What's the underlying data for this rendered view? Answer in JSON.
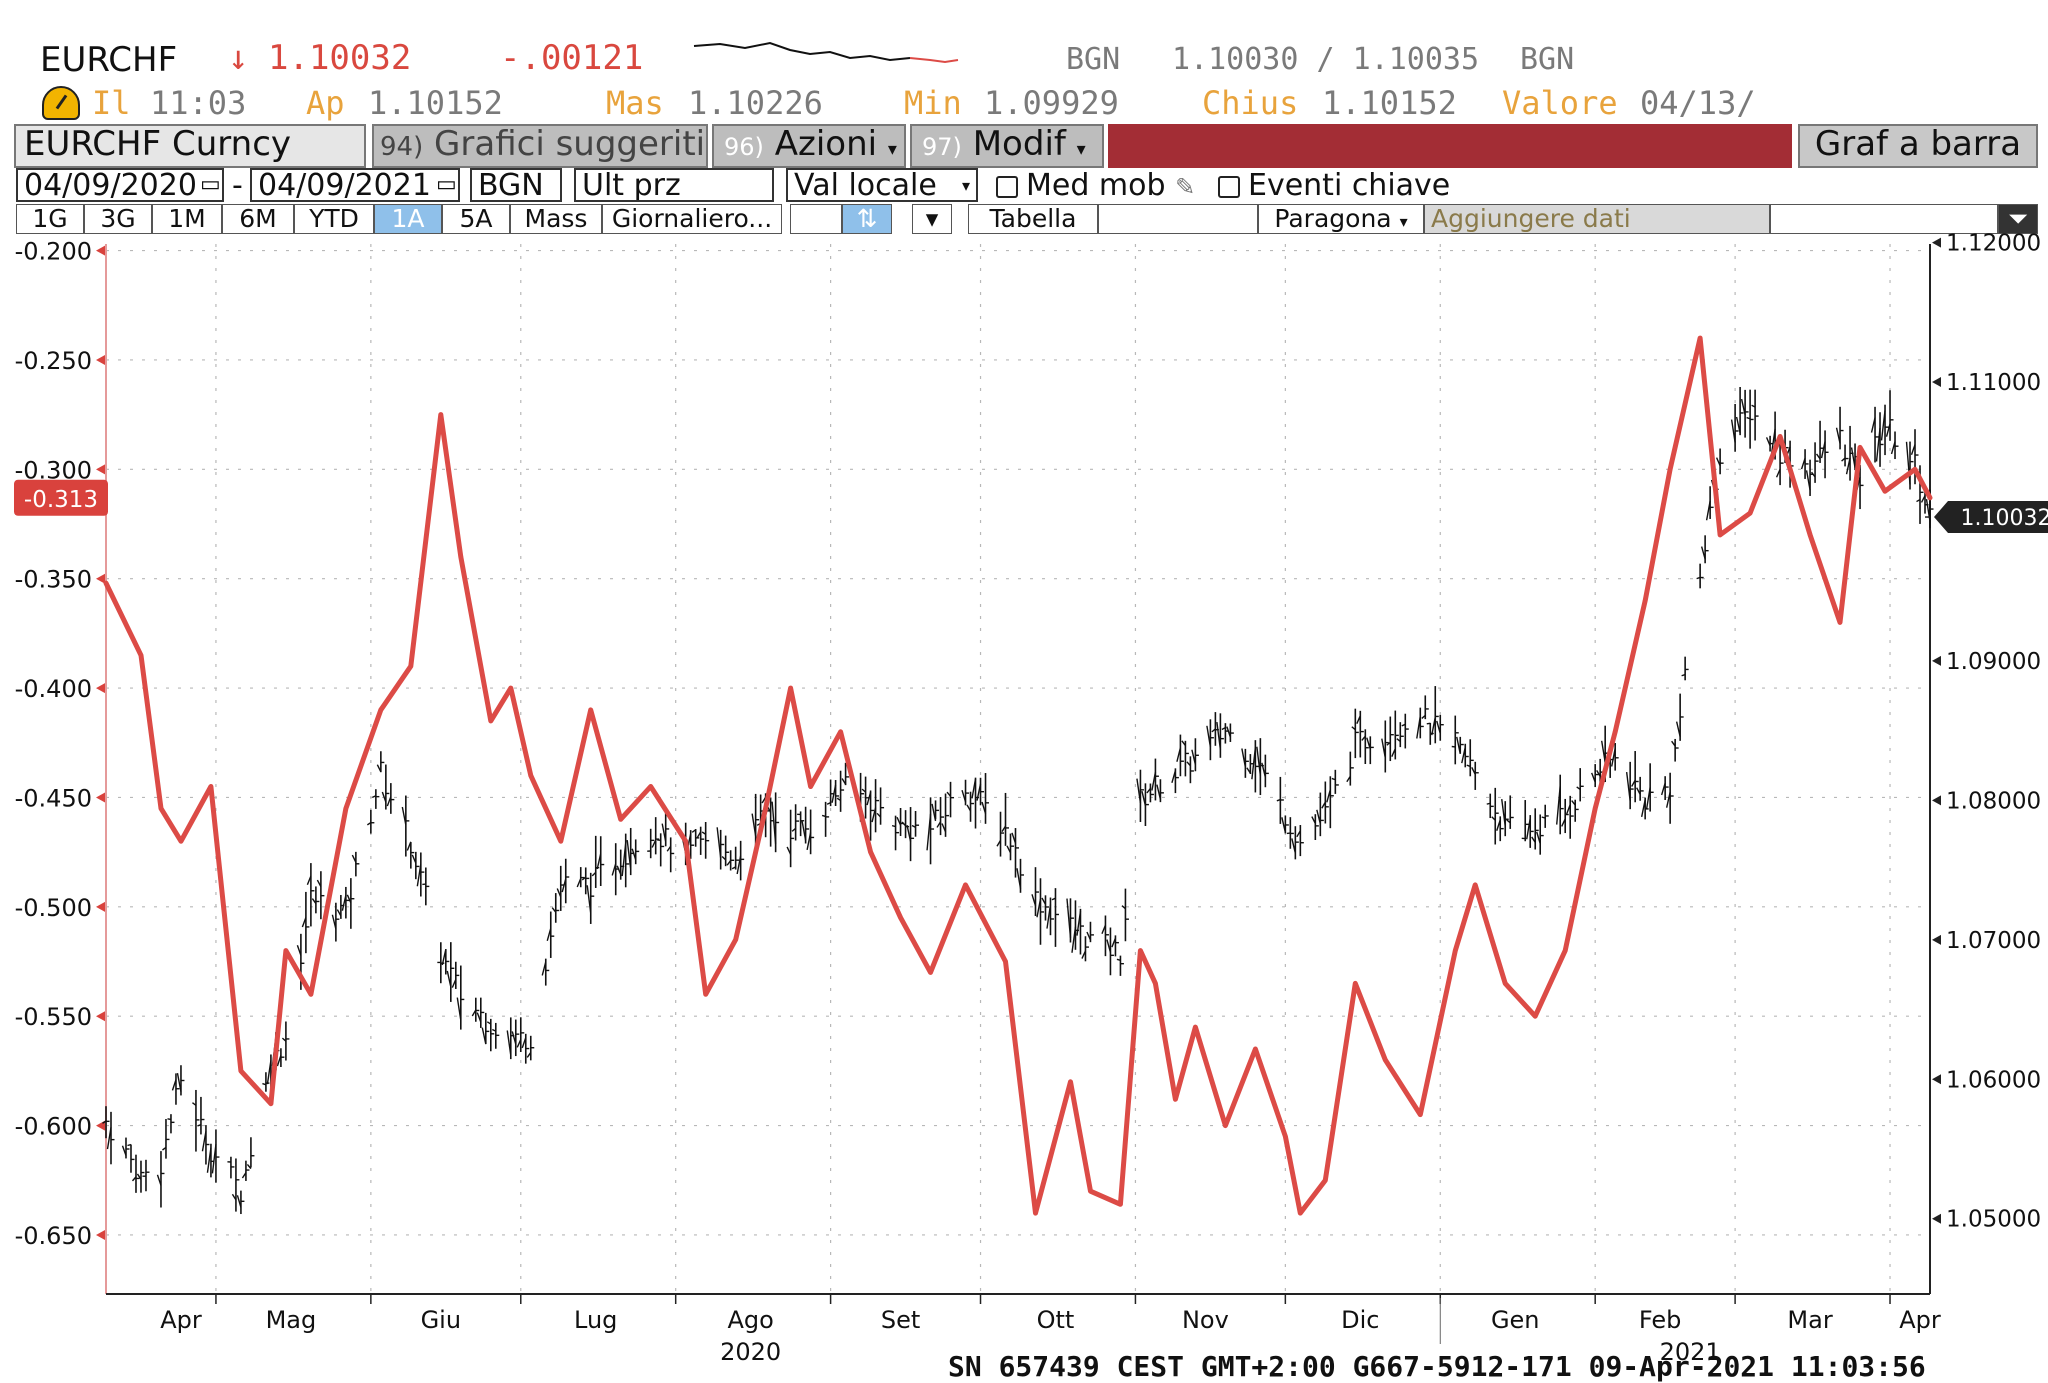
{
  "header": {
    "ticker": "EURCHF",
    "change_arrow": "↓",
    "last_price": "1.10032",
    "change": "-.00121",
    "bid_source": "BGN",
    "bid_ask": "1.10030 / 1.10035",
    "ask_source": "BGN",
    "time_label": "Il",
    "time": "11:03",
    "open_label": "Ap",
    "open": "1.10152",
    "high_label": "Mas",
    "high": "1.10226",
    "low_label": "Min",
    "low": "1.09929",
    "close_label": "Chius",
    "close": "1.10152",
    "value_label": "Valore",
    "value_date": "04/13/"
  },
  "toolbar": {
    "security": "EURCHF Curncy",
    "suggested_num": "94)",
    "suggested": "Grafici suggeriti",
    "actions_num": "96)",
    "actions": "Azioni",
    "modify_num": "97)",
    "modify": "Modif",
    "bar_chart": "Graf a barra",
    "date_from": "04/09/2020",
    "date_sep": "-",
    "date_to": "04/09/2021",
    "source": "BGN",
    "price_field": "Ult prz",
    "currency": "Val locale",
    "moving_avg": "Med mob",
    "key_events": "Eventi chiave",
    "periods": [
      "1G",
      "3G",
      "1M",
      "6M",
      "YTD",
      "1A",
      "5A",
      "Mass"
    ],
    "active_period": "1A",
    "frequency": "Giornaliero...",
    "table": "Tabella",
    "compare": "Paragona",
    "add_data": "Aggiungere dati"
  },
  "footer": {
    "stamp": "SN 657439 CEST GMT+2:00 G667-5912-171 09-Apr-2021 11:03:56"
  },
  "colors": {
    "red_series": "#dc4b46",
    "black_series": "#111111",
    "last_tag_red": "#d9423d",
    "last_tag_dark": "#222222"
  },
  "chart_data": {
    "type": "line",
    "x_labels": [
      "Apr",
      "Mag",
      "Giu",
      "Lug",
      "Ago",
      "Set",
      "Ott",
      "Nov",
      "Dic",
      "Gen",
      "Feb",
      "Mar",
      "Apr"
    ],
    "year_labels": [
      "2020",
      "2021"
    ],
    "left_axis": {
      "ticks": [
        "-0.200",
        "-0.250",
        "-0.300",
        "-0.350",
        "-0.400",
        "-0.450",
        "-0.500",
        "-0.550",
        "-0.600",
        "-0.650"
      ],
      "range": [
        -0.677,
        -0.197
      ],
      "last_value": "-0.313"
    },
    "right_axis": {
      "ticks": [
        "1.12000",
        "1.11000",
        "1.09000",
        "1.08000",
        "1.07000",
        "1.06000",
        "1.05000"
      ],
      "range": [
        1.0446,
        1.1199
      ],
      "last_value": "1.10032"
    },
    "series": [
      {
        "axis": "left",
        "style": "line",
        "color": "#dc4b46",
        "dates": [
          "2020-04-09",
          "2020-04-16",
          "2020-04-20",
          "2020-04-24",
          "2020-04-30",
          "2020-05-06",
          "2020-05-12",
          "2020-05-15",
          "2020-05-20",
          "2020-05-27",
          "2020-06-03",
          "2020-06-09",
          "2020-06-15",
          "2020-06-19",
          "2020-06-25",
          "2020-06-29",
          "2020-07-03",
          "2020-07-09",
          "2020-07-15",
          "2020-07-21",
          "2020-07-27",
          "2020-08-03",
          "2020-08-07",
          "2020-08-13",
          "2020-08-19",
          "2020-08-24",
          "2020-08-28",
          "2020-09-03",
          "2020-09-09",
          "2020-09-15",
          "2020-09-21",
          "2020-09-28",
          "2020-10-06",
          "2020-10-12",
          "2020-10-19",
          "2020-10-23",
          "2020-10-29",
          "2020-11-02",
          "2020-11-05",
          "2020-11-09",
          "2020-11-13",
          "2020-11-19",
          "2020-11-25",
          "2020-12-01",
          "2020-12-04",
          "2020-12-09",
          "2020-12-15",
          "2020-12-21",
          "2020-12-28",
          "2021-01-04",
          "2021-01-08",
          "2021-01-14",
          "2021-01-20",
          "2021-01-26",
          "2021-02-01",
          "2021-02-05",
          "2021-02-11",
          "2021-02-16",
          "2021-02-22",
          "2021-02-26",
          "2021-03-04",
          "2021-03-10",
          "2021-03-16",
          "2021-03-22",
          "2021-03-26",
          "2021-03-31",
          "2021-04-06",
          "2021-04-09"
        ],
        "values": [
          -0.352,
          -0.385,
          -0.455,
          -0.47,
          -0.445,
          -0.575,
          -0.59,
          -0.52,
          -0.54,
          -0.455,
          -0.41,
          -0.39,
          -0.275,
          -0.34,
          -0.415,
          -0.4,
          -0.44,
          -0.47,
          -0.41,
          -0.46,
          -0.445,
          -0.47,
          -0.54,
          -0.515,
          -0.455,
          -0.4,
          -0.445,
          -0.42,
          -0.475,
          -0.505,
          -0.53,
          -0.49,
          -0.525,
          -0.64,
          -0.58,
          -0.63,
          -0.636,
          -0.52,
          -0.535,
          -0.588,
          -0.555,
          -0.6,
          -0.565,
          -0.605,
          -0.64,
          -0.625,
          -0.535,
          -0.57,
          -0.595,
          -0.52,
          -0.49,
          -0.535,
          -0.55,
          -0.52,
          -0.455,
          -0.42,
          -0.36,
          -0.3,
          -0.24,
          -0.33,
          -0.32,
          -0.285,
          -0.33,
          -0.37,
          -0.29,
          -0.31,
          -0.3,
          -0.313
        ]
      },
      {
        "axis": "right",
        "style": "ohlc",
        "color": "#111111",
        "dates": [
          "2020-04-09",
          "2020-04-16",
          "2020-04-20",
          "2020-04-24",
          "2020-04-30",
          "2020-05-06",
          "2020-05-12",
          "2020-05-15",
          "2020-05-20",
          "2020-05-27",
          "2020-06-03",
          "2020-06-09",
          "2020-06-15",
          "2020-06-19",
          "2020-06-25",
          "2020-06-29",
          "2020-07-03",
          "2020-07-09",
          "2020-07-15",
          "2020-07-21",
          "2020-07-27",
          "2020-08-03",
          "2020-08-07",
          "2020-08-13",
          "2020-08-19",
          "2020-08-24",
          "2020-08-28",
          "2020-09-03",
          "2020-09-09",
          "2020-09-15",
          "2020-09-21",
          "2020-09-28",
          "2020-10-06",
          "2020-10-12",
          "2020-10-19",
          "2020-10-23",
          "2020-10-29",
          "2020-11-02",
          "2020-11-05",
          "2020-11-09",
          "2020-11-13",
          "2020-11-19",
          "2020-11-25",
          "2020-12-01",
          "2020-12-04",
          "2020-12-09",
          "2020-12-15",
          "2020-12-21",
          "2020-12-28",
          "2021-01-04",
          "2021-01-08",
          "2021-01-14",
          "2021-01-20",
          "2021-01-26",
          "2021-02-01",
          "2021-02-05",
          "2021-02-11",
          "2021-02-16",
          "2021-02-22",
          "2021-02-26",
          "2021-03-04",
          "2021-03-10",
          "2021-03-16",
          "2021-03-22",
          "2021-03-26",
          "2021-03-31",
          "2021-04-06",
          "2021-04-09"
        ],
        "values": [
          1.057,
          1.053,
          1.054,
          1.06,
          1.055,
          1.052,
          1.061,
          1.063,
          1.073,
          1.072,
          1.082,
          1.077,
          1.069,
          1.066,
          1.064,
          1.063,
          1.063,
          1.074,
          1.074,
          1.076,
          1.078,
          1.076,
          1.077,
          1.076,
          1.079,
          1.078,
          1.078,
          1.081,
          1.08,
          1.078,
          1.078,
          1.081,
          1.078,
          1.073,
          1.071,
          1.07,
          1.069,
          1.08,
          1.081,
          1.082,
          1.083,
          1.085,
          1.083,
          1.079,
          1.077,
          1.079,
          1.084,
          1.085,
          1.086,
          1.084,
          1.082,
          1.078,
          1.078,
          1.079,
          1.082,
          1.083,
          1.08,
          1.081,
          1.096,
          1.105,
          1.108,
          1.105,
          1.104,
          1.106,
          1.103,
          1.107,
          1.104,
          1.1003
        ]
      }
    ]
  }
}
